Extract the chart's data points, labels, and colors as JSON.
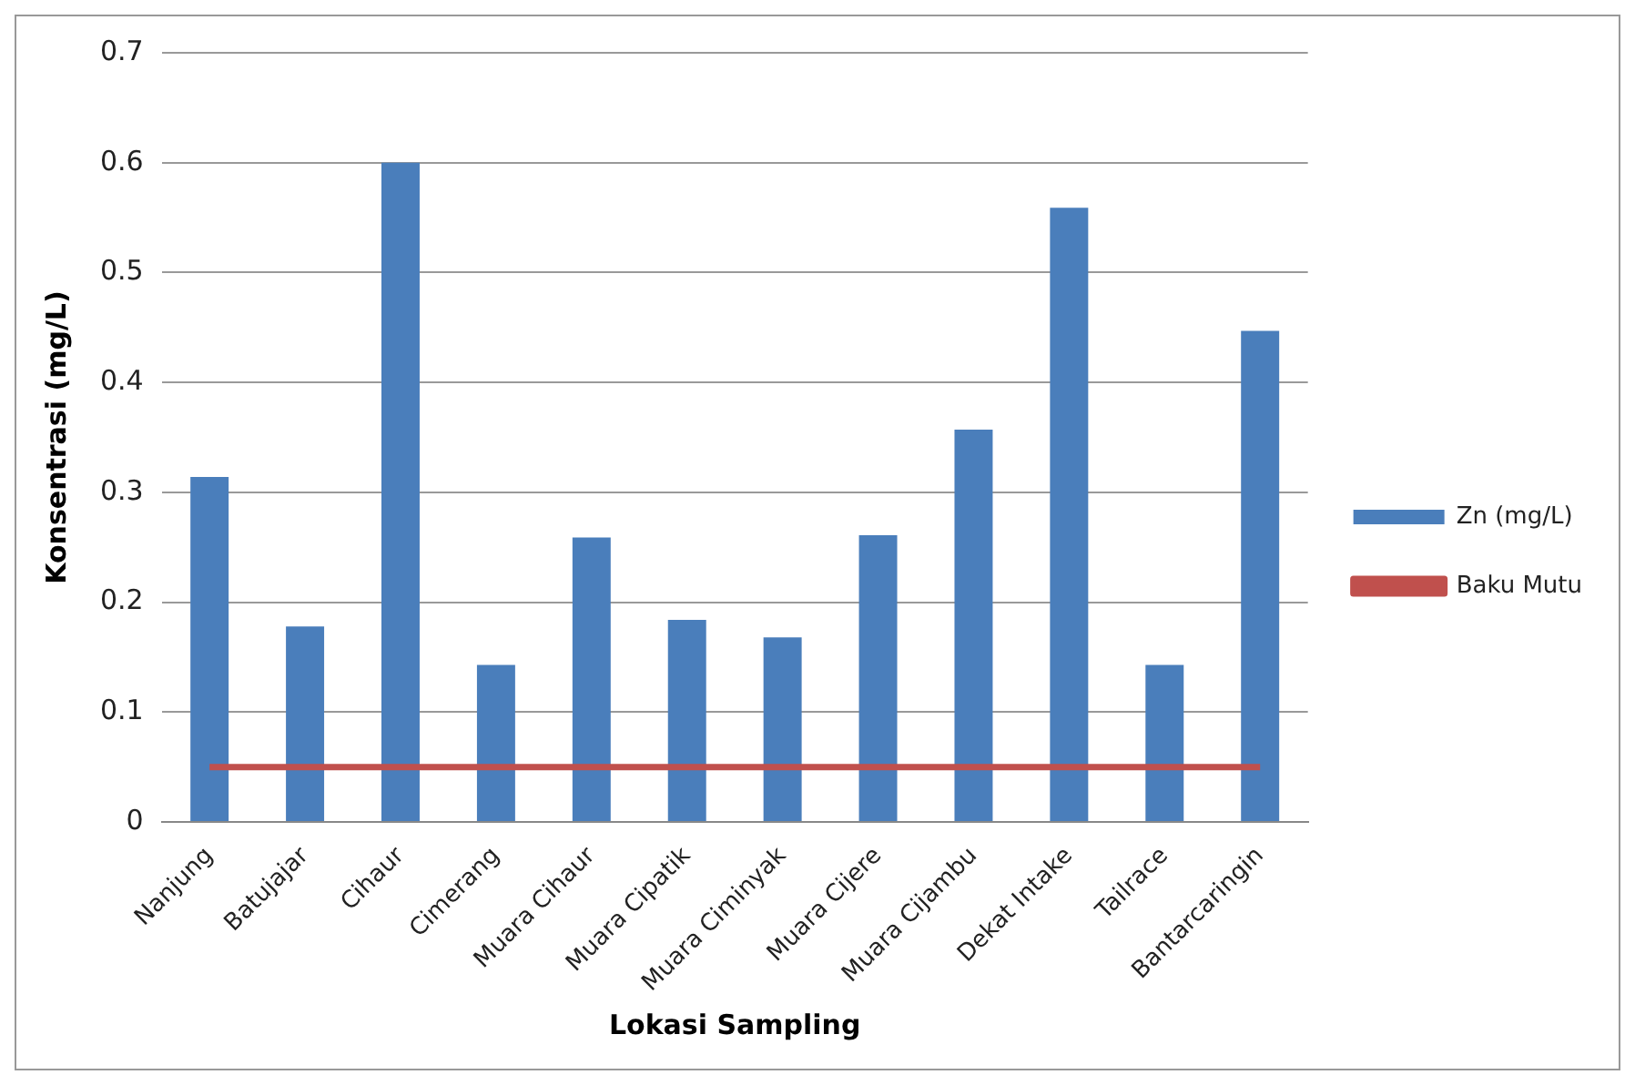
{
  "chart_data": {
    "type": "bar",
    "xlabel": "Lokasi Sampling",
    "ylabel": "Konsentrasi (mg/L)",
    "categories": [
      "Nanjung",
      "Batujajar",
      "Cihaur",
      "Cimerang",
      "Muara Cihaur",
      "Muara Cipatik",
      "Muara Ciminyak",
      "Muara Cijere",
      "Muara Cijambu",
      "Dekat Intake",
      "Tailrace",
      "Bantarcaringin"
    ],
    "series": [
      {
        "name": "Zn (mg/L)",
        "color": "#4a7ebb",
        "values": [
          0.314,
          0.178,
          0.6,
          0.143,
          0.259,
          0.184,
          0.168,
          0.261,
          0.357,
          0.559,
          0.143,
          0.447
        ]
      },
      {
        "name": "Baku Mutu",
        "type": "line",
        "color": "#c0504d",
        "values": [
          0.05,
          0.05,
          0.05,
          0.05,
          0.05,
          0.05,
          0.05,
          0.05,
          0.05,
          0.05,
          0.05,
          0.05
        ]
      }
    ],
    "ylim": [
      0,
      0.7
    ],
    "yticks": [
      0,
      0.1,
      0.2,
      0.3,
      0.4,
      0.5,
      0.6,
      0.7
    ],
    "grid": "y",
    "legend": "right",
    "marker": "none"
  }
}
